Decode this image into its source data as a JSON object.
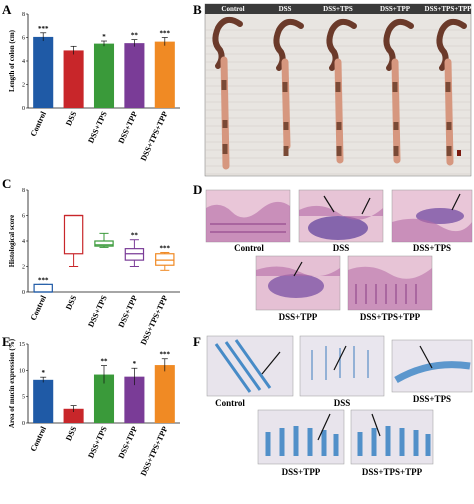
{
  "panels": {
    "A": "A",
    "B": "B",
    "C": "C",
    "D": "D",
    "E": "E",
    "F": "F"
  },
  "colors": {
    "control": "#1f5aa6",
    "dss": "#c8262a",
    "tps": "#3a9a3a",
    "tpp": "#7a3c97",
    "tpstpp": "#f08a24"
  },
  "chart_data": [
    {
      "id": "A",
      "type": "bar",
      "categories": [
        "Control",
        "DSS",
        "DSS+TPS",
        "DSS+TPP",
        "DSS+TPS+TPP"
      ],
      "values": [
        6.05,
        4.9,
        5.48,
        5.52,
        5.65
      ],
      "errors": [
        0.35,
        0.35,
        0.22,
        0.3,
        0.35
      ],
      "significance": [
        "***",
        "",
        "*",
        "**",
        "***"
      ],
      "ylabel": "Length of colon (cm)",
      "ylim": [
        0,
        8
      ],
      "yticks": [
        "0",
        "2",
        "4",
        "6",
        "8"
      ]
    },
    {
      "id": "C",
      "type": "box",
      "categories": [
        "Control",
        "DSS",
        "DSS+TPS",
        "DSS+TPP",
        "DSS+TPS+TPP"
      ],
      "boxes": [
        {
          "min": 0,
          "q1": 0,
          "median": 0,
          "q3": 0.6,
          "max": 0.6
        },
        {
          "min": 2,
          "q1": 3,
          "median": 6,
          "q3": 6,
          "max": 6
        },
        {
          "min": 3.5,
          "q1": 3.6,
          "median": 3.7,
          "q3": 4,
          "max": 4.6
        },
        {
          "min": 2,
          "q1": 2.5,
          "median": 3,
          "q3": 3.4,
          "max": 4.1
        },
        {
          "min": 1.7,
          "q1": 2.1,
          "median": 2.5,
          "q3": 3,
          "max": 3.1
        }
      ],
      "significance": [
        "***",
        "",
        "",
        "**",
        "***"
      ],
      "ylabel": "Histological score",
      "ylim": [
        0,
        8
      ],
      "yticks": [
        "0",
        "2",
        "4",
        "6",
        "8"
      ]
    },
    {
      "id": "E",
      "type": "bar",
      "categories": [
        "Control",
        "DSS",
        "DSS+TPS",
        "DSS+TPP",
        "DSS+TPS+TPP"
      ],
      "values": [
        8.2,
        2.7,
        9.2,
        8.8,
        11.0
      ],
      "errors": [
        0.5,
        0.6,
        1.7,
        1.6,
        1.2
      ],
      "significance": [
        "*",
        "",
        "**",
        "*",
        "***"
      ],
      "ylabel": "Area of mucin expression (%)",
      "ylim": [
        0,
        15
      ],
      "yticks": [
        "0",
        "5",
        "10",
        "15"
      ]
    }
  ],
  "photo_b": {
    "labels": [
      "Control",
      "DSS",
      "DSS+TPS",
      "DSS+TPP",
      "DSS+TPS+TPP"
    ]
  },
  "histo_d": {
    "labels": [
      "Control",
      "DSS",
      "DSS+TPS",
      "DSS+TPP",
      "DSS+TPS+TPP"
    ]
  },
  "histo_f": {
    "labels": [
      "Control",
      "DSS",
      "DSS+TPS",
      "DSS+TPP",
      "DSS+TPS+TPP"
    ]
  }
}
